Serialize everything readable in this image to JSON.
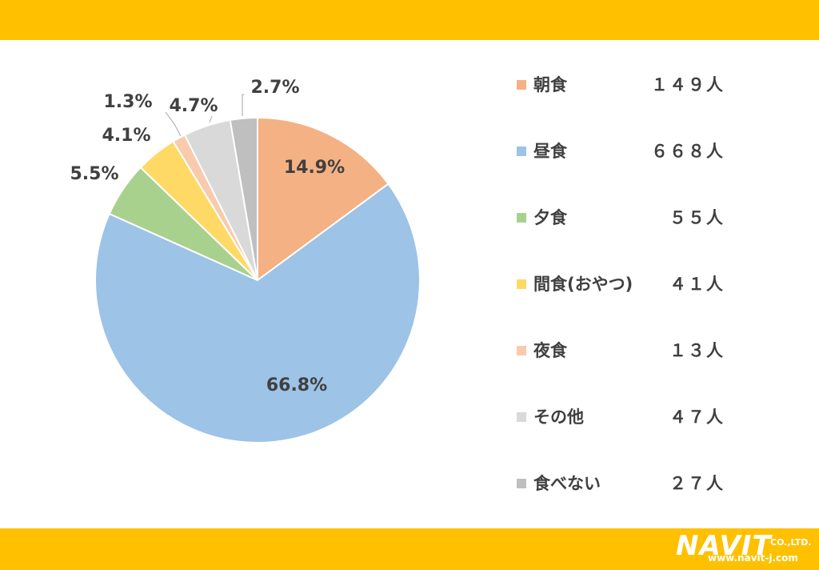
{
  "chart_data": {
    "type": "pie",
    "categories": [
      "朝食",
      "昼食",
      "夕食",
      "間食(おやつ)",
      "夜食",
      "その他",
      "食べない"
    ],
    "values": [
      149,
      668,
      55,
      41,
      13,
      47,
      27
    ],
    "percent_labels": [
      "14.9%",
      "66.8%",
      "5.5%",
      "4.1%",
      "1.3%",
      "4.7%",
      "2.7%"
    ],
    "colors": [
      "#f4b183",
      "#9dc3e6",
      "#a9d18e",
      "#ffd966",
      "#f8cbad",
      "#d9d9d9",
      "#bfbfbf"
    ],
    "legend_counts": [
      "１４９人",
      "６６８人",
      "５５人",
      "４１人",
      "１３人",
      "４７人",
      "２７人"
    ],
    "legend_position": "right"
  },
  "logo": {
    "name": "NAVIT",
    "suffix": "CO.,LTD.",
    "url": "www.navit-j.com"
  },
  "colors": {
    "band": "#ffc000",
    "text": "#404040"
  }
}
